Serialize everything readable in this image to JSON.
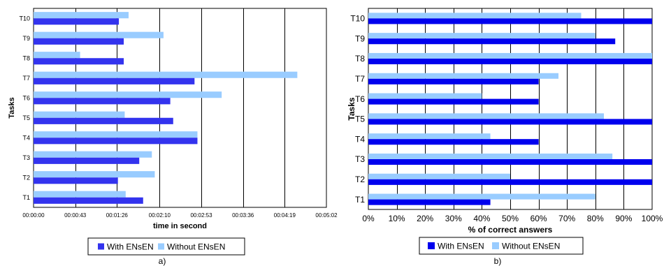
{
  "chart_data": [
    {
      "type": "bar",
      "orientation": "horizontal",
      "categories": [
        "T1",
        "T2",
        "T3",
        "T4",
        "T5",
        "T6",
        "T7",
        "T8",
        "T9",
        "T10"
      ],
      "series": [
        {
          "name": "With ENsEN",
          "values": [
            113,
            87,
            109,
            169,
            144,
            141,
            166,
            93,
            93,
            88
          ]
        },
        {
          "name": "Without ENsEN",
          "values": [
            95,
            125,
            122,
            169,
            94,
            194,
            272,
            48,
            134,
            98
          ]
        }
      ],
      "xlabel": "time in second",
      "ylabel": "Tasks",
      "xlim": [
        0,
        302
      ],
      "xticks": [
        0,
        43,
        86,
        130,
        173,
        216,
        259,
        302
      ],
      "xtick_labels": [
        "00:00:00",
        "00:00:43",
        "00:01:26",
        "00:02:10",
        "00:02:53",
        "00:03:36",
        "00:04:19",
        "00:05:02"
      ],
      "grid": "vertical",
      "legend": "bottom",
      "caption": "a)",
      "colors": {
        "With ENsEN": "#3333ee",
        "Without ENsEN": "#99ccff"
      }
    },
    {
      "type": "bar",
      "orientation": "horizontal",
      "categories": [
        "T1",
        "T2",
        "T3",
        "T4",
        "T5",
        "T6",
        "T7",
        "T8",
        "T9",
        "T10"
      ],
      "series": [
        {
          "name": "With ENsEN",
          "values": [
            43,
            100,
            100,
            60,
            100,
            60,
            60,
            100,
            87,
            100
          ]
        },
        {
          "name": "Without ENsEN",
          "values": [
            80,
            50,
            86,
            43,
            83,
            40,
            67,
            100,
            80,
            75
          ]
        }
      ],
      "xlabel": "% of correct answers",
      "ylabel": "Tasks",
      "xlim": [
        0,
        100
      ],
      "xticks": [
        0,
        10,
        20,
        30,
        40,
        50,
        60,
        70,
        80,
        90,
        100
      ],
      "xtick_labels": [
        "0%",
        "10%",
        "20%",
        "30%",
        "40%",
        "50%",
        "60%",
        "70%",
        "80%",
        "90%",
        "100%"
      ],
      "grid": "vertical",
      "legend": "bottom",
      "caption": "b)",
      "colors": {
        "With ENsEN": "#0000ee",
        "Without ENsEN": "#99ccff"
      }
    }
  ]
}
